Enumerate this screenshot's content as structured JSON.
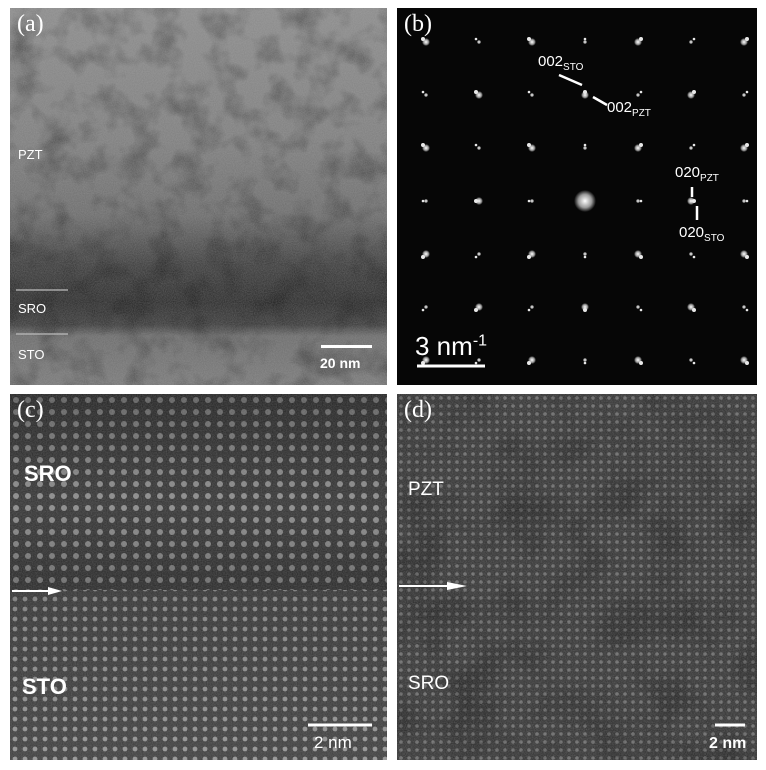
{
  "panel_a": {
    "label": "(a)",
    "layers": [
      "PZT",
      "SRO",
      "STO"
    ],
    "scale_bar": "20 nm"
  },
  "panel_b": {
    "label": "(b)",
    "annotations": [
      {
        "base": "002",
        "sub": "STO"
      },
      {
        "base": "002",
        "sub": "PZT"
      },
      {
        "base": "020",
        "sub": "PZT"
      },
      {
        "base": "020",
        "sub": "STO"
      }
    ],
    "scale_bar_base": "3 nm",
    "scale_bar_sup": "-1"
  },
  "panel_c": {
    "label": "(c)",
    "layers": [
      "SRO",
      "STO"
    ],
    "scale_bar": "2 nm"
  },
  "panel_d": {
    "label": "(d)",
    "layers": [
      "PZT",
      "SRO"
    ],
    "scale_bar": "2 nm"
  }
}
